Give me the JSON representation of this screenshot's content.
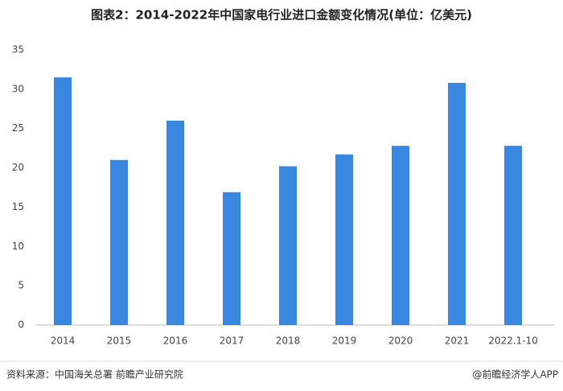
{
  "chart_data": {
    "type": "bar",
    "title": "图表2：2014-2022年中国家电行业进口金额变化情况(单位：亿美元)",
    "categories": [
      "2014",
      "2015",
      "2016",
      "2017",
      "2018",
      "2019",
      "2020",
      "2021",
      "2022.1-10"
    ],
    "values": [
      31.5,
      21.0,
      26.0,
      16.9,
      20.2,
      21.7,
      22.8,
      30.8,
      22.8
    ],
    "color": "#3a87e0",
    "ylim": [
      0,
      35
    ],
    "yticks": [
      0,
      5,
      10,
      15,
      20,
      25,
      30,
      35
    ],
    "grid": false,
    "source": "资料来源：中国海关总署 前瞻产业研究院",
    "credit": "@前瞻经济学人APP"
  }
}
